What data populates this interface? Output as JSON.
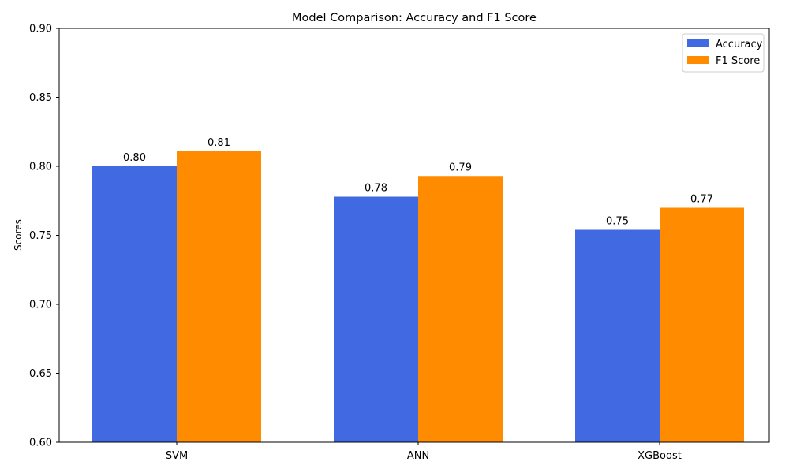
{
  "chart_data": {
    "type": "bar",
    "title": "Model Comparison: Accuracy and F1 Score",
    "xlabel": "",
    "ylabel": "Scores",
    "categories": [
      "SVM",
      "ANN",
      "XGBoost"
    ],
    "series": [
      {
        "name": "Accuracy",
        "color": "#4169E1",
        "values": [
          0.8,
          0.778,
          0.754
        ],
        "labels": [
          "0.80",
          "0.78",
          "0.75"
        ]
      },
      {
        "name": "F1 Score",
        "color": "#FF8C00",
        "values": [
          0.811,
          0.793,
          0.77
        ],
        "labels": [
          "0.81",
          "0.79",
          "0.77"
        ]
      }
    ],
    "ylim": [
      0.6,
      0.9
    ],
    "yticks": [
      "0.60",
      "0.65",
      "0.70",
      "0.75",
      "0.80",
      "0.85",
      "0.90"
    ],
    "grid": false,
    "legend_position": "top-right"
  }
}
